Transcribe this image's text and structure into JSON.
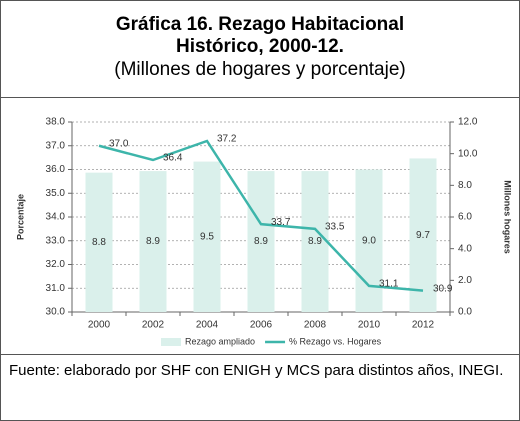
{
  "chart_data": {
    "type": "bar-line",
    "title": [
      "Gráfica 16. Rezago Habitacional",
      "Histórico, 2000-12."
    ],
    "subtitle": "(Millones de hogares y porcentaje)",
    "categories": [
      "2000",
      "2002",
      "2004",
      "2006",
      "2008",
      "2010",
      "2012"
    ],
    "series": [
      {
        "name": "Rezago ampliado",
        "type": "bar",
        "axis": "y2",
        "color": "#daf0eb",
        "values": [
          8.8,
          8.9,
          9.5,
          8.9,
          8.9,
          9,
          9.7
        ],
        "value_labels": [
          "8.8",
          "8.9",
          "9.5",
          "8.9",
          "8.9",
          "9.0",
          "9.7"
        ]
      },
      {
        "name": "% Rezago vs. Hogares",
        "type": "line",
        "axis": "y",
        "color": "#3db5aa",
        "values": [
          37,
          36.4,
          37.2,
          33.7,
          33.5,
          31.1,
          30.9
        ],
        "value_labels": [
          "37.0",
          "36.4",
          "37.2",
          "33.7",
          "33.5",
          "31.1",
          "30.9"
        ]
      }
    ],
    "ylabel": "Porcentaje",
    "y2label": "Millones hogares",
    "ylim": [
      30,
      38
    ],
    "yticks": [
      {
        "value": 30,
        "label": "30.0"
      },
      {
        "value": 31,
        "label": "31.0"
      },
      {
        "value": 32,
        "label": "32.0"
      },
      {
        "value": 33,
        "label": "33.0"
      },
      {
        "value": 34,
        "label": "34.0"
      },
      {
        "value": 35,
        "label": "35.0"
      },
      {
        "value": 36,
        "label": "36.0"
      },
      {
        "value": 37,
        "label": "37.0"
      },
      {
        "value": 38,
        "label": "38.0"
      }
    ],
    "y2lim": [
      0,
      12
    ],
    "y2ticks": [
      {
        "value": 0,
        "label": "0.0"
      },
      {
        "value": 2,
        "label": "2.0"
      },
      {
        "value": 4,
        "label": "4.0"
      },
      {
        "value": 6,
        "label": "6.0"
      },
      {
        "value": 8,
        "label": "8.0"
      },
      {
        "value": 10,
        "label": "10.0"
      },
      {
        "value": 12,
        "label": "12.0"
      }
    ],
    "grid": true,
    "legend": "bottom",
    "source": "Fuente: elaborado por SHF con ENIGH y MCS para distintos años, INEGI."
  }
}
